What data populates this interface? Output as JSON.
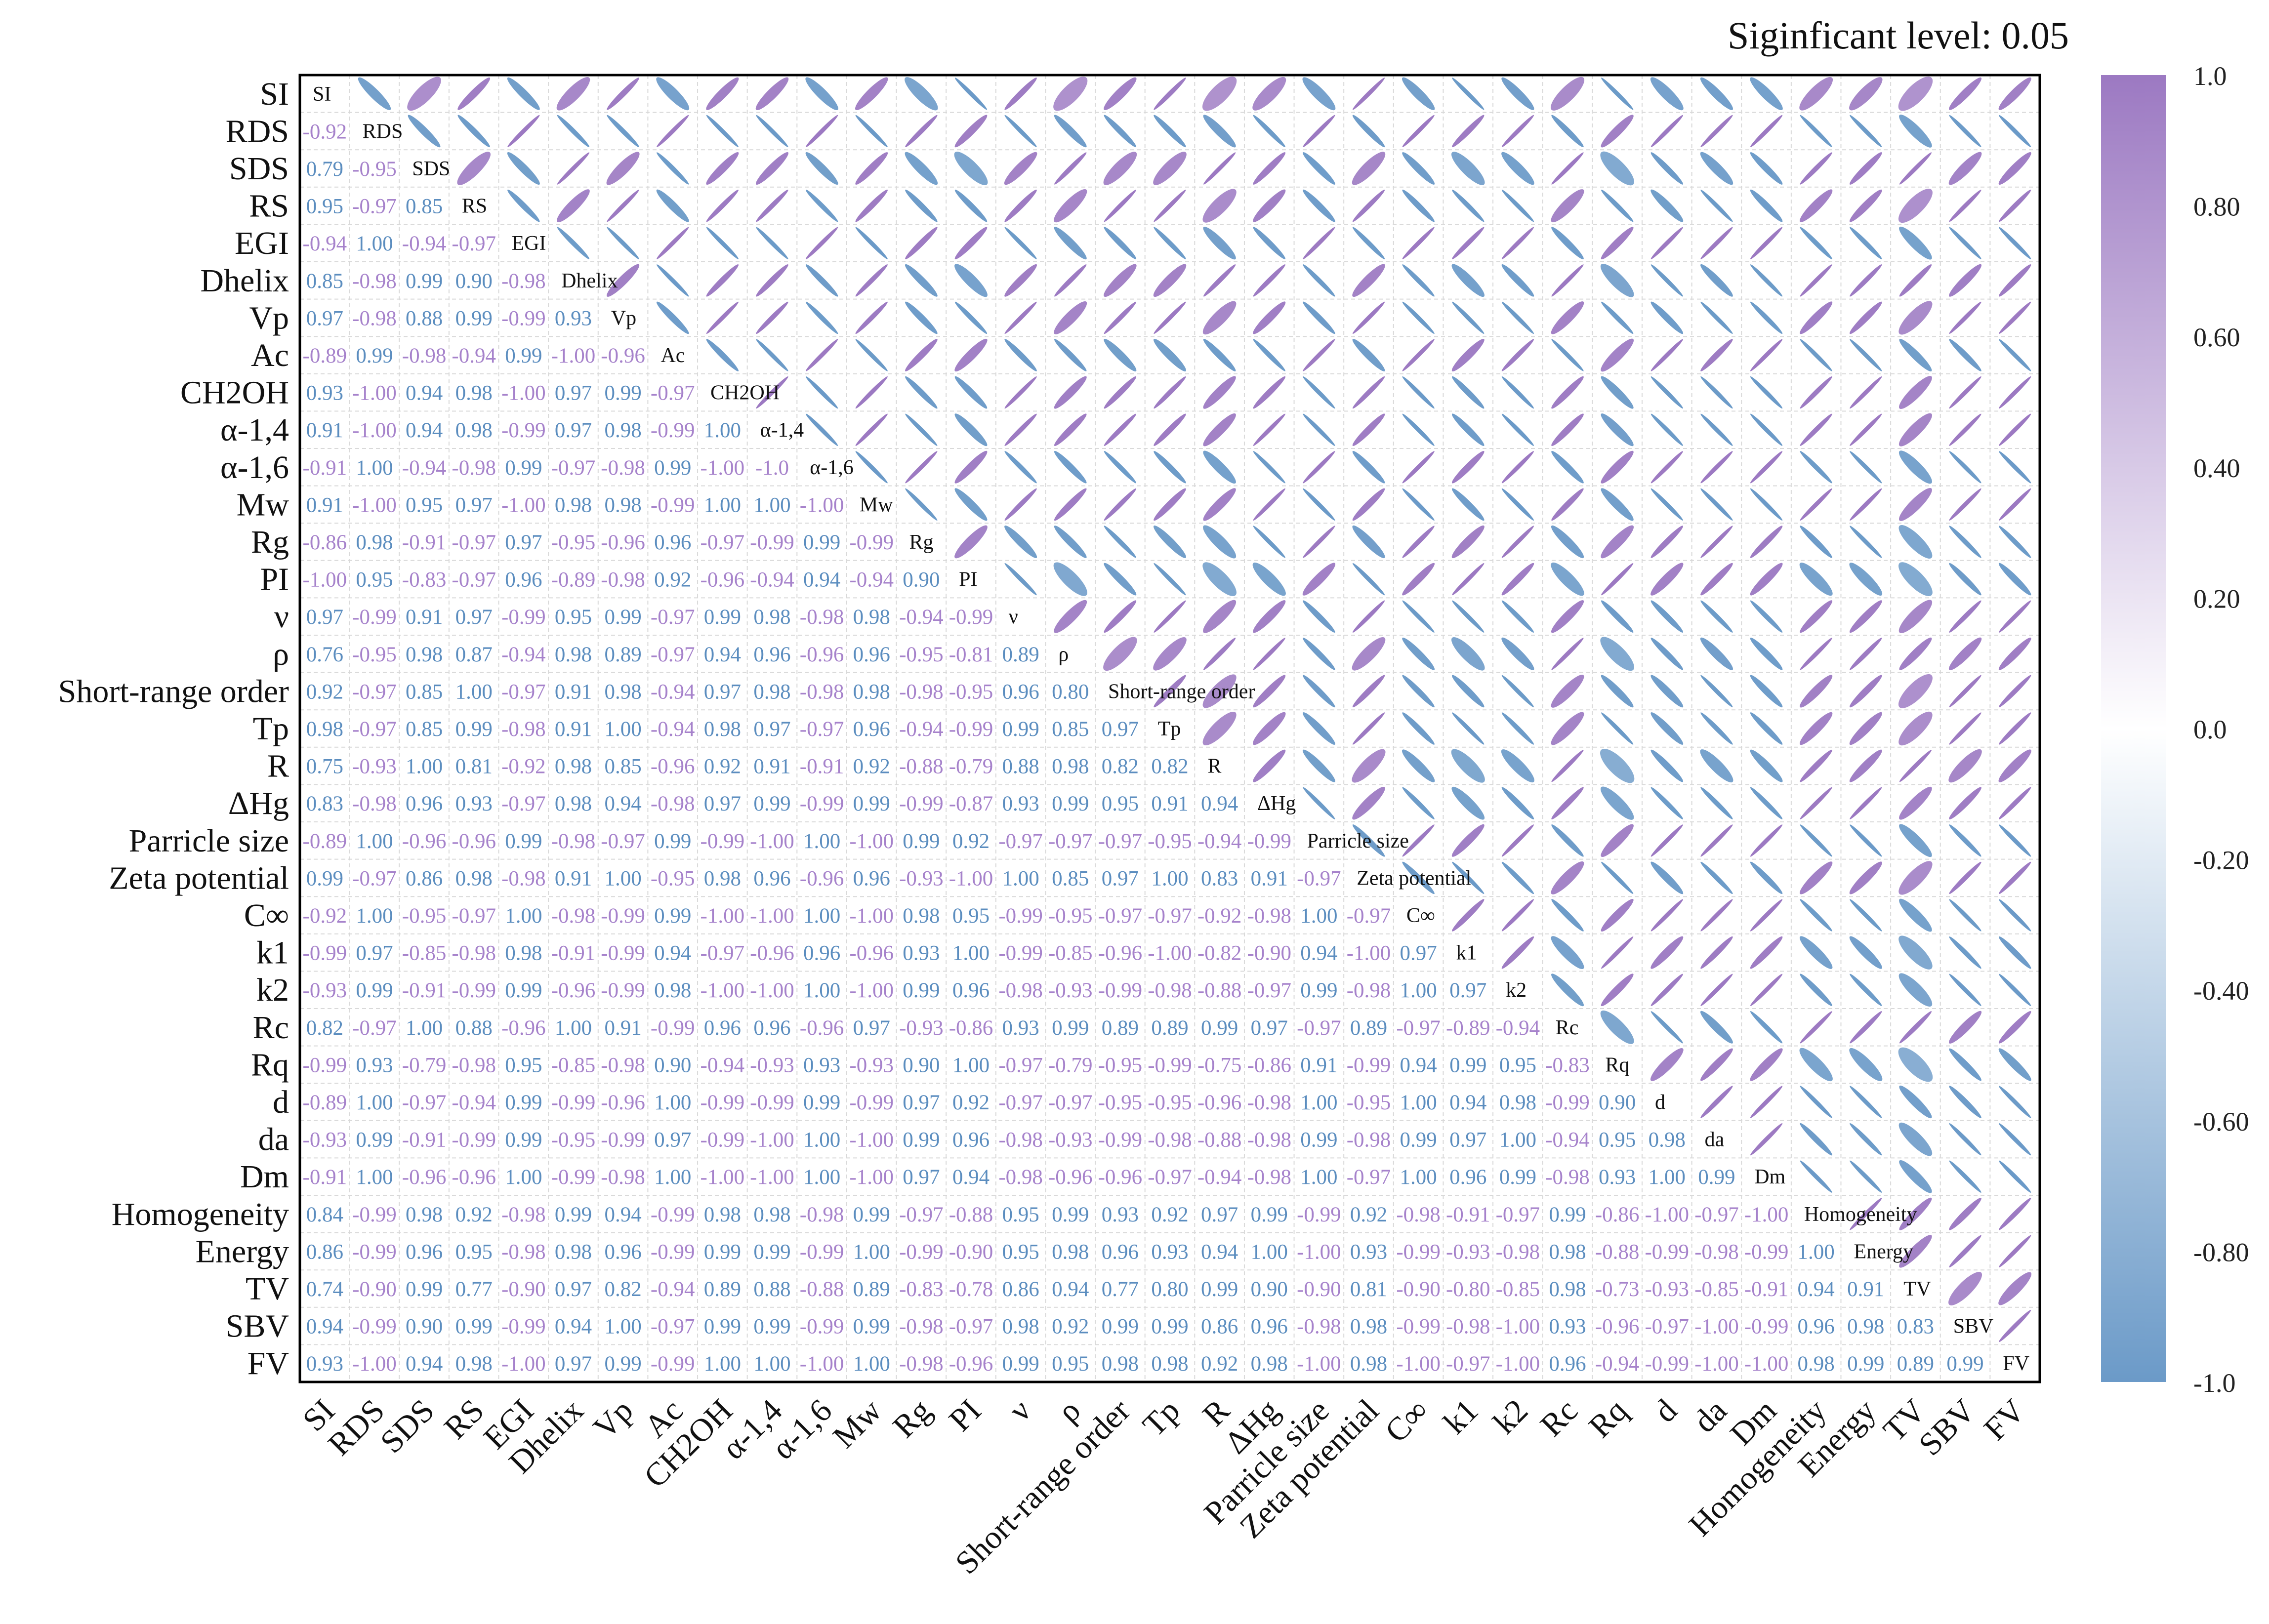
{
  "figure": {
    "significance_label": "Siginficant level: 0.05"
  },
  "chart_data": {
    "type": "heatmap",
    "subtype": "correlation matrix (ellipses in upper triangle, values in lower triangle, names on diagonal)",
    "variables": [
      "SI",
      "RDS",
      "SDS",
      "RS",
      "EGI",
      "Dhelix",
      "Vp",
      "Ac",
      "CH2OH",
      "α-1,4",
      "α-1,6",
      "Mw",
      "Rg",
      "PI",
      "ν",
      "ρ",
      "Short-range order",
      "Tp",
      "R",
      "ΔHg",
      "Parricle size",
      "Zeta potential",
      "C∞",
      "k1",
      "k2",
      "Rc",
      "Rq",
      "d",
      "da",
      "Dm",
      "Homogeneity",
      "Energy",
      "TV",
      "SBV",
      "FV"
    ],
    "lower_triangle_values": [
      [],
      [
        "-0.92"
      ],
      [
        "0.79",
        "-0.95"
      ],
      [
        "0.95",
        "-0.97",
        "0.85"
      ],
      [
        "-0.94",
        "1.00",
        "-0.94",
        "-0.97"
      ],
      [
        "0.85",
        "-0.98",
        "0.99",
        "0.90",
        "-0.98"
      ],
      [
        "0.97",
        "-0.98",
        "0.88",
        "0.99",
        "-0.99",
        "0.93"
      ],
      [
        "-0.89",
        "0.99",
        "-0.98",
        "-0.94",
        "0.99",
        "-1.00",
        "-0.96"
      ],
      [
        "0.93",
        "-1.00",
        "0.94",
        "0.98",
        "-1.00",
        "0.97",
        "0.99",
        "-0.97"
      ],
      [
        "0.91",
        "-1.00",
        "0.94",
        "0.98",
        "-0.99",
        "0.97",
        "0.98",
        "-0.99",
        "1.00"
      ],
      [
        "-0.91",
        "1.00",
        "-0.94",
        "-0.98",
        "0.99",
        "-0.97",
        "-0.98",
        "0.99",
        "-1.00",
        "-1.0"
      ],
      [
        "0.91",
        "-1.00",
        "0.95",
        "0.97",
        "-1.00",
        "0.98",
        "0.98",
        "-0.99",
        "1.00",
        "1.00",
        "-1.00"
      ],
      [
        "-0.86",
        "0.98",
        "-0.91",
        "-0.97",
        "0.97",
        "-0.95",
        "-0.96",
        "0.96",
        "-0.97",
        "-0.99",
        "0.99",
        "-0.99"
      ],
      [
        "-1.00",
        "0.95",
        "-0.83",
        "-0.97",
        "0.96",
        "-0.89",
        "-0.98",
        "0.92",
        "-0.96",
        "-0.94",
        "0.94",
        "-0.94",
        "0.90"
      ],
      [
        "0.97",
        "-0.99",
        "0.91",
        "0.97",
        "-0.99",
        "0.95",
        "0.99",
        "-0.97",
        "0.99",
        "0.98",
        "-0.98",
        "0.98",
        "-0.94",
        "-0.99"
      ],
      [
        "0.76",
        "-0.95",
        "0.98",
        "0.87",
        "-0.94",
        "0.98",
        "0.89",
        "-0.97",
        "0.94",
        "0.96",
        "-0.96",
        "0.96",
        "-0.95",
        "-0.81",
        "0.89"
      ],
      [
        "0.92",
        "-0.97",
        "0.85",
        "1.00",
        "-0.97",
        "0.91",
        "0.98",
        "-0.94",
        "0.97",
        "0.98",
        "-0.98",
        "0.98",
        "-0.98",
        "-0.95",
        "0.96",
        "0.80"
      ],
      [
        "0.98",
        "-0.97",
        "0.85",
        "0.99",
        "-0.98",
        "0.91",
        "1.00",
        "-0.94",
        "0.98",
        "0.97",
        "-0.97",
        "0.96",
        "-0.94",
        "-0.99",
        "0.99",
        "0.85",
        "0.97"
      ],
      [
        "0.75",
        "-0.93",
        "1.00",
        "0.81",
        "-0.92",
        "0.98",
        "0.85",
        "-0.96",
        "0.92",
        "0.91",
        "-0.91",
        "0.92",
        "-0.88",
        "-0.79",
        "0.88",
        "0.98",
        "0.82",
        "0.82"
      ],
      [
        "0.83",
        "-0.98",
        "0.96",
        "0.93",
        "-0.97",
        "0.98",
        "0.94",
        "-0.98",
        "0.97",
        "0.99",
        "-0.99",
        "0.99",
        "-0.99",
        "-0.87",
        "0.93",
        "0.99",
        "0.95",
        "0.91",
        "0.94"
      ],
      [
        "-0.89",
        "1.00",
        "-0.96",
        "-0.96",
        "0.99",
        "-0.98",
        "-0.97",
        "0.99",
        "-0.99",
        "-1.00",
        "1.00",
        "-1.00",
        "0.99",
        "0.92",
        "-0.97",
        "-0.97",
        "-0.97",
        "-0.95",
        "-0.94",
        "-0.99"
      ],
      [
        "0.99",
        "-0.97",
        "0.86",
        "0.98",
        "-0.98",
        "0.91",
        "1.00",
        "-0.95",
        "0.98",
        "0.96",
        "-0.96",
        "0.96",
        "-0.93",
        "-1.00",
        "1.00",
        "0.85",
        "0.97",
        "1.00",
        "0.83",
        "0.91",
        "-0.97"
      ],
      [
        "-0.92",
        "1.00",
        "-0.95",
        "-0.97",
        "1.00",
        "-0.98",
        "-0.99",
        "0.99",
        "-1.00",
        "-1.00",
        "1.00",
        "-1.00",
        "0.98",
        "0.95",
        "-0.99",
        "-0.95",
        "-0.97",
        "-0.97",
        "-0.92",
        "-0.98",
        "1.00",
        "-0.97"
      ],
      [
        "-0.99",
        "0.97",
        "-0.85",
        "-0.98",
        "0.98",
        "-0.91",
        "-0.99",
        "0.94",
        "-0.97",
        "-0.96",
        "0.96",
        "-0.96",
        "0.93",
        "1.00",
        "-0.99",
        "-0.85",
        "-0.96",
        "-1.00",
        "-0.82",
        "-0.90",
        "0.94",
        "-1.00",
        "0.97"
      ],
      [
        "-0.93",
        "0.99",
        "-0.91",
        "-0.99",
        "0.99",
        "-0.96",
        "-0.99",
        "0.98",
        "-1.00",
        "-1.00",
        "1.00",
        "-1.00",
        "0.99",
        "0.96",
        "-0.98",
        "-0.93",
        "-0.99",
        "-0.98",
        "-0.88",
        "-0.97",
        "0.99",
        "-0.98",
        "1.00",
        "0.97"
      ],
      [
        "0.82",
        "-0.97",
        "1.00",
        "0.88",
        "-0.96",
        "1.00",
        "0.91",
        "-0.99",
        "0.96",
        "0.96",
        "-0.96",
        "0.97",
        "-0.93",
        "-0.86",
        "0.93",
        "0.99",
        "0.89",
        "0.89",
        "0.99",
        "0.97",
        "-0.97",
        "0.89",
        "-0.97",
        "-0.89",
        "-0.94"
      ],
      [
        "-0.99",
        "0.93",
        "-0.79",
        "-0.98",
        "0.95",
        "-0.85",
        "-0.98",
        "0.90",
        "-0.94",
        "-0.93",
        "0.93",
        "-0.93",
        "0.90",
        "1.00",
        "-0.97",
        "-0.79",
        "-0.95",
        "-0.99",
        "-0.75",
        "-0.86",
        "0.91",
        "-0.99",
        "0.94",
        "0.99",
        "0.95",
        "-0.83"
      ],
      [
        "-0.89",
        "1.00",
        "-0.97",
        "-0.94",
        "0.99",
        "-0.99",
        "-0.96",
        "1.00",
        "-0.99",
        "-0.99",
        "0.99",
        "-0.99",
        "0.97",
        "0.92",
        "-0.97",
        "-0.97",
        "-0.95",
        "-0.95",
        "-0.96",
        "-0.98",
        "1.00",
        "-0.95",
        "1.00",
        "0.94",
        "0.98",
        "-0.99",
        "0.90"
      ],
      [
        "-0.93",
        "0.99",
        "-0.91",
        "-0.99",
        "0.99",
        "-0.95",
        "-0.99",
        "0.97",
        "-0.99",
        "-1.00",
        "1.00",
        "-1.00",
        "0.99",
        "0.96",
        "-0.98",
        "-0.93",
        "-0.99",
        "-0.98",
        "-0.88",
        "-0.98",
        "0.99",
        "-0.98",
        "0.99",
        "0.97",
        "1.00",
        "-0.94",
        "0.95",
        "0.98"
      ],
      [
        "-0.91",
        "1.00",
        "-0.96",
        "-0.96",
        "1.00",
        "-0.99",
        "-0.98",
        "1.00",
        "-1.00",
        "-1.00",
        "1.00",
        "-1.00",
        "0.97",
        "0.94",
        "-0.98",
        "-0.96",
        "-0.96",
        "-0.97",
        "-0.94",
        "-0.98",
        "1.00",
        "-0.97",
        "1.00",
        "0.96",
        "0.99",
        "-0.98",
        "0.93",
        "1.00",
        "0.99"
      ],
      [
        "0.84",
        "-0.99",
        "0.98",
        "0.92",
        "-0.98",
        "0.99",
        "0.94",
        "-0.99",
        "0.98",
        "0.98",
        "-0.98",
        "0.99",
        "-0.97",
        "-0.88",
        "0.95",
        "0.99",
        "0.93",
        "0.92",
        "0.97",
        "0.99",
        "-0.99",
        "0.92",
        "-0.98",
        "-0.91",
        "-0.97",
        "0.99",
        "-0.86",
        "-1.00",
        "-0.97",
        "-1.00"
      ],
      [
        "0.86",
        "-0.99",
        "0.96",
        "0.95",
        "-0.98",
        "0.98",
        "0.96",
        "-0.99",
        "0.99",
        "0.99",
        "-0.99",
        "1.00",
        "-0.99",
        "-0.90",
        "0.95",
        "0.98",
        "0.96",
        "0.93",
        "0.94",
        "1.00",
        "-1.00",
        "0.93",
        "-0.99",
        "-0.93",
        "-0.98",
        "0.98",
        "-0.88",
        "-0.99",
        "-0.98",
        "-0.99",
        "1.00"
      ],
      [
        "0.74",
        "-0.90",
        "0.99",
        "0.77",
        "-0.90",
        "0.97",
        "0.82",
        "-0.94",
        "0.89",
        "0.88",
        "-0.88",
        "0.89",
        "-0.83",
        "-0.78",
        "0.86",
        "0.94",
        "0.77",
        "0.80",
        "0.99",
        "0.90",
        "-0.90",
        "0.81",
        "-0.90",
        "-0.80",
        "-0.85",
        "0.98",
        "-0.73",
        "-0.93",
        "-0.85",
        "-0.91",
        "0.94",
        "0.91"
      ],
      [
        "0.94",
        "-0.99",
        "0.90",
        "0.99",
        "-0.99",
        "0.94",
        "1.00",
        "-0.97",
        "0.99",
        "0.99",
        "-0.99",
        "0.99",
        "-0.98",
        "-0.97",
        "0.98",
        "0.92",
        "0.99",
        "0.99",
        "0.86",
        "0.96",
        "-0.98",
        "0.98",
        "-0.99",
        "-0.98",
        "-1.00",
        "0.93",
        "-0.96",
        "-0.97",
        "-1.00",
        "-0.99",
        "0.96",
        "0.98",
        "0.83"
      ],
      [
        "0.93",
        "-1.00",
        "0.94",
        "0.98",
        "-1.00",
        "0.97",
        "0.99",
        "-0.99",
        "1.00",
        "1.00",
        "-1.00",
        "1.00",
        "-0.98",
        "-0.96",
        "0.99",
        "0.95",
        "0.98",
        "0.98",
        "0.92",
        "0.98",
        "-1.00",
        "0.98",
        "-1.00",
        "-0.97",
        "-1.00",
        "0.96",
        "-0.94",
        "-0.99",
        "-1.00",
        "-1.00",
        "0.98",
        "0.99",
        "0.89",
        "0.99"
      ]
    ],
    "value_range": [
      -1.0,
      1.0
    ],
    "colorscale": {
      "negative": "#6b9ac8",
      "zero": "#ffffff",
      "positive": "#9c79c2"
    },
    "colorbar_ticks": [
      "1.0",
      "0.80",
      "0.60",
      "0.40",
      "0.20",
      "0.0",
      "-0.20",
      "-0.40",
      "-0.60",
      "-0.80",
      "-1.0"
    ],
    "grid": "dashed light gray cell borders",
    "legend": "colorbar right"
  }
}
